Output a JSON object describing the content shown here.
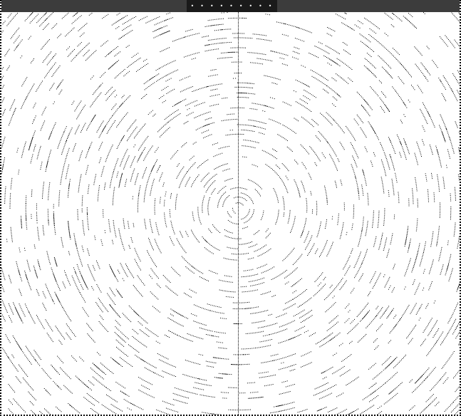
{
  "window": {
    "title": "• • • • • • • • •"
  },
  "pattern": {
    "foreground": "#000000",
    "background": "#ffffff",
    "title_bar": "#1a1a1a",
    "shape": "concentric-dotted-rings"
  },
  "icons": {
    "divider": "vertical-dotted-line"
  }
}
